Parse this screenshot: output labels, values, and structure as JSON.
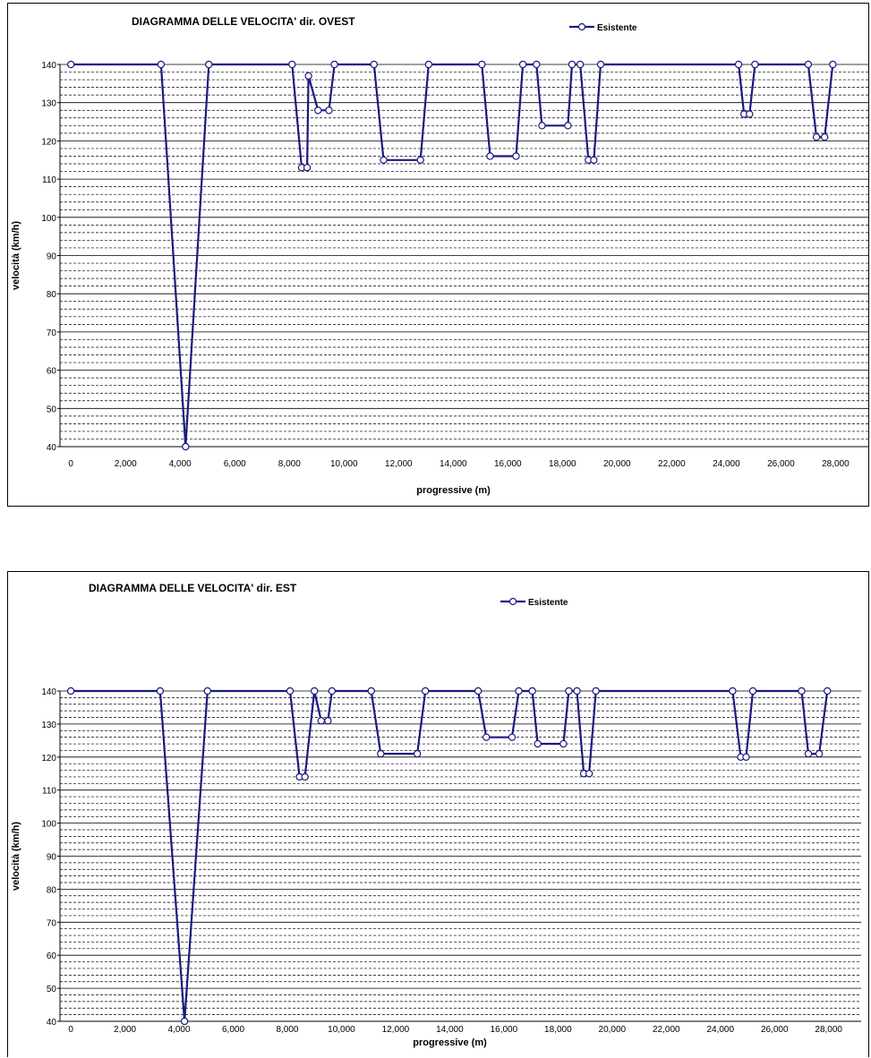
{
  "colors": {
    "series": "#1a1a80",
    "grid": "#000000",
    "background": "#ffffff"
  },
  "chart_data": [
    {
      "type": "line",
      "title": "DIAGRAMMA DELLE VELOCITA' dir. OVEST",
      "xlabel": "progressive (m)",
      "ylabel": "velocità (km/h)",
      "xlim": [
        -400,
        29200
      ],
      "ylim": [
        40,
        140
      ],
      "xticks": [
        "0",
        "2,000",
        "4,000",
        "6,000",
        "8,000",
        "10,000",
        "12,000",
        "14,000",
        "16,000",
        "18,000",
        "20,000",
        "22,000",
        "24,000",
        "26,000",
        "28,000"
      ],
      "yticks": [
        "40",
        "50",
        "60",
        "70",
        "80",
        "90",
        "100",
        "110",
        "120",
        "130",
        "140"
      ],
      "grid": true,
      "legend_position": "top-right",
      "series": [
        {
          "name": "Esistente",
          "x": [
            0,
            3300,
            4200,
            5050,
            8100,
            8450,
            8650,
            8700,
            9050,
            9450,
            9650,
            11100,
            11450,
            12800,
            13100,
            15050,
            15350,
            16300,
            16550,
            17050,
            17250,
            18200,
            18350,
            18650,
            18950,
            19150,
            19400,
            24450,
            24650,
            24850,
            25050,
            27000,
            27300,
            27600,
            27900
          ],
          "y": [
            140,
            140,
            40,
            140,
            140,
            113,
            113,
            137,
            128,
            128,
            140,
            140,
            115,
            115,
            140,
            140,
            116,
            116,
            140,
            140,
            124,
            124,
            140,
            140,
            115,
            115,
            140,
            140,
            127,
            127,
            140,
            140,
            121,
            121,
            140
          ]
        }
      ]
    },
    {
      "type": "line",
      "title": "DIAGRAMMA DELLE VELOCITA' dir. EST",
      "xlabel": "progressive (m)",
      "ylabel": "velocità (km/h)",
      "xlim": [
        -400,
        29200
      ],
      "ylim": [
        40,
        140
      ],
      "xticks": [
        "0",
        "2,000",
        "4,000",
        "6,000",
        "8,000",
        "10,000",
        "12,000",
        "14,000",
        "16,000",
        "18,000",
        "20,000",
        "22,000",
        "24,000",
        "26,000",
        "28,000"
      ],
      "yticks": [
        "40",
        "50",
        "60",
        "70",
        "80",
        "90",
        "100",
        "110",
        "120",
        "130",
        "140"
      ],
      "grid": true,
      "legend_position": "top-center",
      "series": [
        {
          "name": "Esistente",
          "x": [
            0,
            3300,
            4200,
            5050,
            8100,
            8450,
            8650,
            9000,
            9250,
            9500,
            9650,
            11100,
            11450,
            12800,
            13100,
            15050,
            15350,
            16300,
            16550,
            17050,
            17250,
            18200,
            18400,
            18700,
            18950,
            19150,
            19400,
            24450,
            24750,
            24950,
            25200,
            27000,
            27250,
            27650,
            27950
          ],
          "y": [
            140,
            140,
            40,
            140,
            140,
            114,
            114,
            140,
            131,
            131,
            140,
            140,
            121,
            121,
            140,
            140,
            126,
            126,
            140,
            140,
            124,
            124,
            140,
            140,
            115,
            115,
            140,
            140,
            120,
            120,
            140,
            140,
            121,
            121,
            140
          ]
        }
      ]
    }
  ]
}
